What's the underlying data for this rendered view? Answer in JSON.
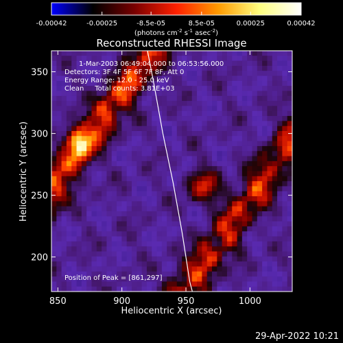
{
  "colorbar": {
    "ticks": [
      {
        "value": -0.00042,
        "label": "-0.00042"
      },
      {
        "value": -0.00025,
        "label": "-0.00025"
      },
      {
        "value": -8.5e-05,
        "label": "-8.5e-05"
      },
      {
        "value": 8.5e-05,
        "label": "8.5e-05"
      },
      {
        "value": 0.00025,
        "label": "0.00025"
      },
      {
        "value": 0.00042,
        "label": "0.00042"
      }
    ],
    "range": [
      -0.00042,
      0.00042
    ],
    "unit_parts": {
      "a": "(photons cm",
      "b": "-2",
      "c": " s",
      "d": "-1",
      "e": " asec",
      "f": "-2",
      "g": ")"
    },
    "colors": [
      "#0000ff",
      "#000000",
      "#7a0000",
      "#ff2000",
      "#ff9a00",
      "#ffff80",
      "#ffffff"
    ]
  },
  "chart_data": {
    "type": "heatmap",
    "title": "Reconstructed RHESSI Image",
    "xlabel": "Heliocentric X (arcsec)",
    "ylabel": "Heliocentric Y (arcsec)",
    "xlim": [
      845,
      1033
    ],
    "ylim": [
      172,
      367
    ],
    "xticks": [
      850,
      900,
      950,
      1000
    ],
    "yticks": [
      200,
      250,
      300,
      350
    ],
    "annotations": {
      "time_range": "1-Mar-2003 06:49:04.000 to 06:53:56.000",
      "detectors": "Detectors: 3F 4F 5F 6F 7F 8F, Att 0",
      "energy": "Energy Range: 12.0 - 25.0 keV",
      "method": "Clean     Total counts: 3.81E+03",
      "peak": "Position of Peak = [861,297]"
    },
    "peak_position": [
      861,
      297
    ],
    "limb_curve": [
      [
        920,
        367
      ],
      [
        925,
        340
      ],
      [
        932,
        300
      ],
      [
        940,
        260
      ],
      [
        947,
        220
      ],
      [
        953,
        180
      ],
      [
        955,
        172
      ]
    ]
  },
  "footer": {
    "timestamp": "29-Apr-2022 10:21"
  }
}
